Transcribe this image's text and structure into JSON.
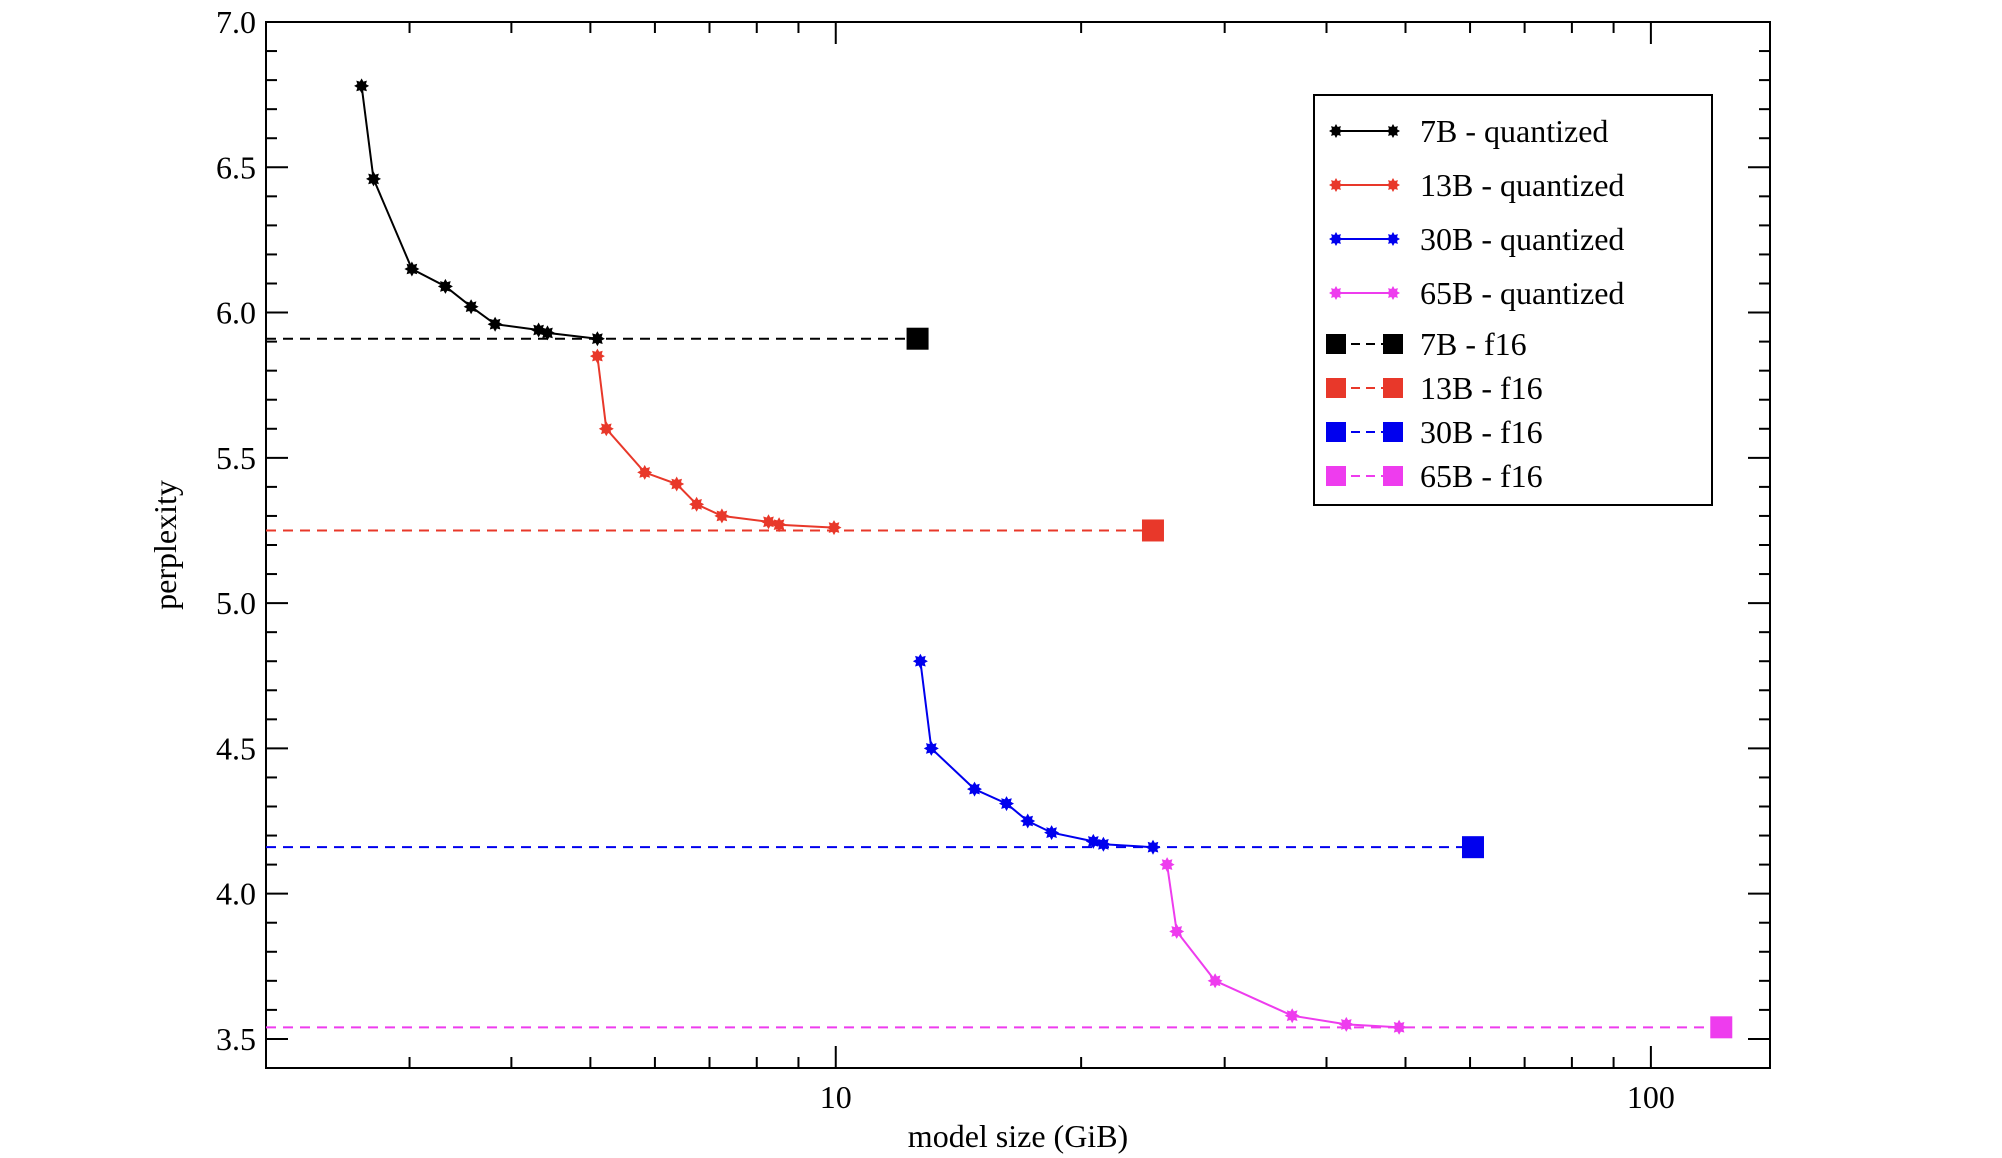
{
  "chart_data": {
    "type": "line",
    "title": "",
    "xlabel": "model size (GiB)",
    "ylabel": "perplexity",
    "xscale": "log",
    "xlim": [
      2,
      140
    ],
    "ylim": [
      3.4,
      7.0
    ],
    "xticks": [
      10,
      100
    ],
    "xtick_labels": [
      "10",
      "100"
    ],
    "yticks": [
      3.5,
      4.0,
      4.5,
      5.0,
      5.5,
      6.0,
      6.5,
      7.0
    ],
    "ytick_labels": [
      "3.5",
      "4.0",
      "4.5",
      "5.0",
      "5.5",
      "6.0",
      "6.5",
      "7.0"
    ],
    "grid": false,
    "legend_position": "top-right",
    "series": [
      {
        "name": "7B - quantized",
        "kind": "quantized",
        "color": "#000000",
        "x": [
          2.62,
          2.71,
          3.02,
          3.32,
          3.57,
          3.82,
          4.32,
          4.43,
          5.1
        ],
        "y": [
          6.78,
          6.46,
          6.15,
          6.09,
          6.02,
          5.96,
          5.94,
          5.93,
          5.91
        ]
      },
      {
        "name": "13B - quantized",
        "kind": "quantized",
        "color": "#e8382a",
        "x": [
          5.1,
          5.23,
          5.83,
          6.38,
          6.75,
          7.25,
          8.27,
          8.52,
          9.95
        ],
        "y": [
          5.85,
          5.6,
          5.45,
          5.41,
          5.34,
          5.3,
          5.28,
          5.27,
          5.26
        ]
      },
      {
        "name": "30B - quantized",
        "kind": "quantized",
        "color": "#0000ee",
        "x": [
          12.7,
          13.1,
          14.8,
          16.2,
          17.2,
          18.4,
          20.7,
          21.3,
          24.5
        ],
        "y": [
          4.8,
          4.5,
          4.36,
          4.31,
          4.25,
          4.21,
          4.18,
          4.17,
          4.16
        ]
      },
      {
        "name": "65B - quantized",
        "kind": "quantized",
        "color": "#ee3cee",
        "x": [
          25.5,
          26.2,
          29.2,
          36.3,
          42.3,
          49.1
        ],
        "y": [
          4.1,
          3.87,
          3.7,
          3.58,
          3.55,
          3.54
        ]
      },
      {
        "name": "7B - f16",
        "kind": "f16",
        "color": "#000000",
        "x": [
          12.6
        ],
        "y": [
          5.91
        ]
      },
      {
        "name": "13B - f16",
        "kind": "f16",
        "color": "#e8382a",
        "x": [
          24.5
        ],
        "y": [
          5.25
        ]
      },
      {
        "name": "30B - f16",
        "kind": "f16",
        "color": "#0000ee",
        "x": [
          60.5
        ],
        "y": [
          4.16
        ]
      },
      {
        "name": "65B - f16",
        "kind": "f16",
        "color": "#ee3cee",
        "x": [
          122
        ],
        "y": [
          3.54
        ]
      }
    ]
  }
}
